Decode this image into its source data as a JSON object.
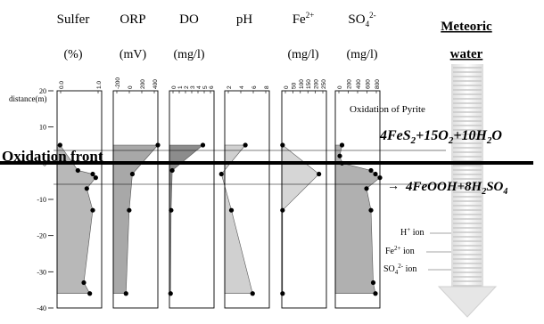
{
  "chart_data": {
    "type": "area",
    "y_axis": {
      "label": "distance(m)",
      "range": [
        -40,
        20
      ],
      "ticks": [
        20,
        10,
        0,
        -10,
        -20,
        -30,
        -40
      ],
      "tick_labels": [
        "20",
        "10",
        "0",
        "-10",
        "-20",
        "-30",
        "-40"
      ]
    },
    "panels": [
      {
        "name": "Sulfer",
        "unit": "(%)",
        "tick_labels": [
          "0.0",
          "1.0"
        ],
        "x_range": [
          0,
          1.5
        ],
        "points": [
          [
            0.1,
            5
          ],
          [
            0.7,
            -2
          ],
          [
            1.2,
            -3
          ],
          [
            1.3,
            -4
          ],
          [
            1.0,
            -7
          ],
          [
            1.2,
            -13
          ],
          [
            0.9,
            -33
          ],
          [
            1.1,
            -36
          ]
        ]
      },
      {
        "name": "ORP",
        "unit": "(mV)",
        "tick_labels": [
          "-200",
          "0",
          "200",
          "400"
        ],
        "x_range": [
          -200,
          500
        ],
        "points": [
          [
            500,
            5
          ],
          [
            100,
            -3
          ],
          [
            50,
            -13
          ],
          [
            0,
            -36
          ]
        ]
      },
      {
        "name": "DO",
        "unit": "(mg/l)",
        "tick_labels": [
          "0",
          "1",
          "2",
          "3",
          "4",
          "5",
          "6"
        ],
        "x_range": [
          0,
          8
        ],
        "points": [
          [
            6,
            5
          ],
          [
            0.5,
            -2
          ],
          [
            0.3,
            -13
          ],
          [
            0.2,
            -36
          ]
        ]
      },
      {
        "name": "pH",
        "unit": "",
        "tick_labels": [
          "2",
          "4",
          "6",
          "8"
        ],
        "x_range": [
          2,
          10
        ],
        "points": [
          [
            5.7,
            5
          ],
          [
            1.4,
            -3
          ],
          [
            3.2,
            -13
          ],
          [
            7,
            -36
          ]
        ]
      },
      {
        "name": "Fe",
        "name_sup": "2+",
        "unit": "(mg/l)",
        "tick_labels": [
          "0",
          "50",
          "100",
          "150",
          "200",
          "250"
        ],
        "x_range": [
          0,
          300
        ],
        "points": [
          [
            5,
            5
          ],
          [
            250,
            -3
          ],
          [
            5,
            -13
          ],
          [
            5,
            -36
          ]
        ]
      },
      {
        "name": "SO",
        "name_sub": "4",
        "name_sup": "2-",
        "unit": "(mg/l)",
        "tick_labels": [
          "0",
          "200",
          "400",
          "600",
          "800"
        ],
        "x_range": [
          0,
          1000
        ],
        "points": [
          [
            150,
            5
          ],
          [
            100,
            2
          ],
          [
            150,
            0
          ],
          [
            800,
            -2
          ],
          [
            900,
            -3
          ],
          [
            1000,
            -4
          ],
          [
            700,
            -7
          ],
          [
            800,
            -13
          ],
          [
            850,
            -33
          ],
          [
            900,
            -36
          ]
        ]
      }
    ],
    "annotations": {
      "oxidation_front_label": "Oxidation front",
      "oxidation_front_depth": 0,
      "oxidation_of_pyrite": "Oxidation of Pyrite",
      "arrow": "→",
      "meteoric_water": [
        "Meteoric",
        "water"
      ],
      "ions": [
        "H+ ion",
        "Fe2+ ion",
        "SO42- ion"
      ]
    }
  }
}
